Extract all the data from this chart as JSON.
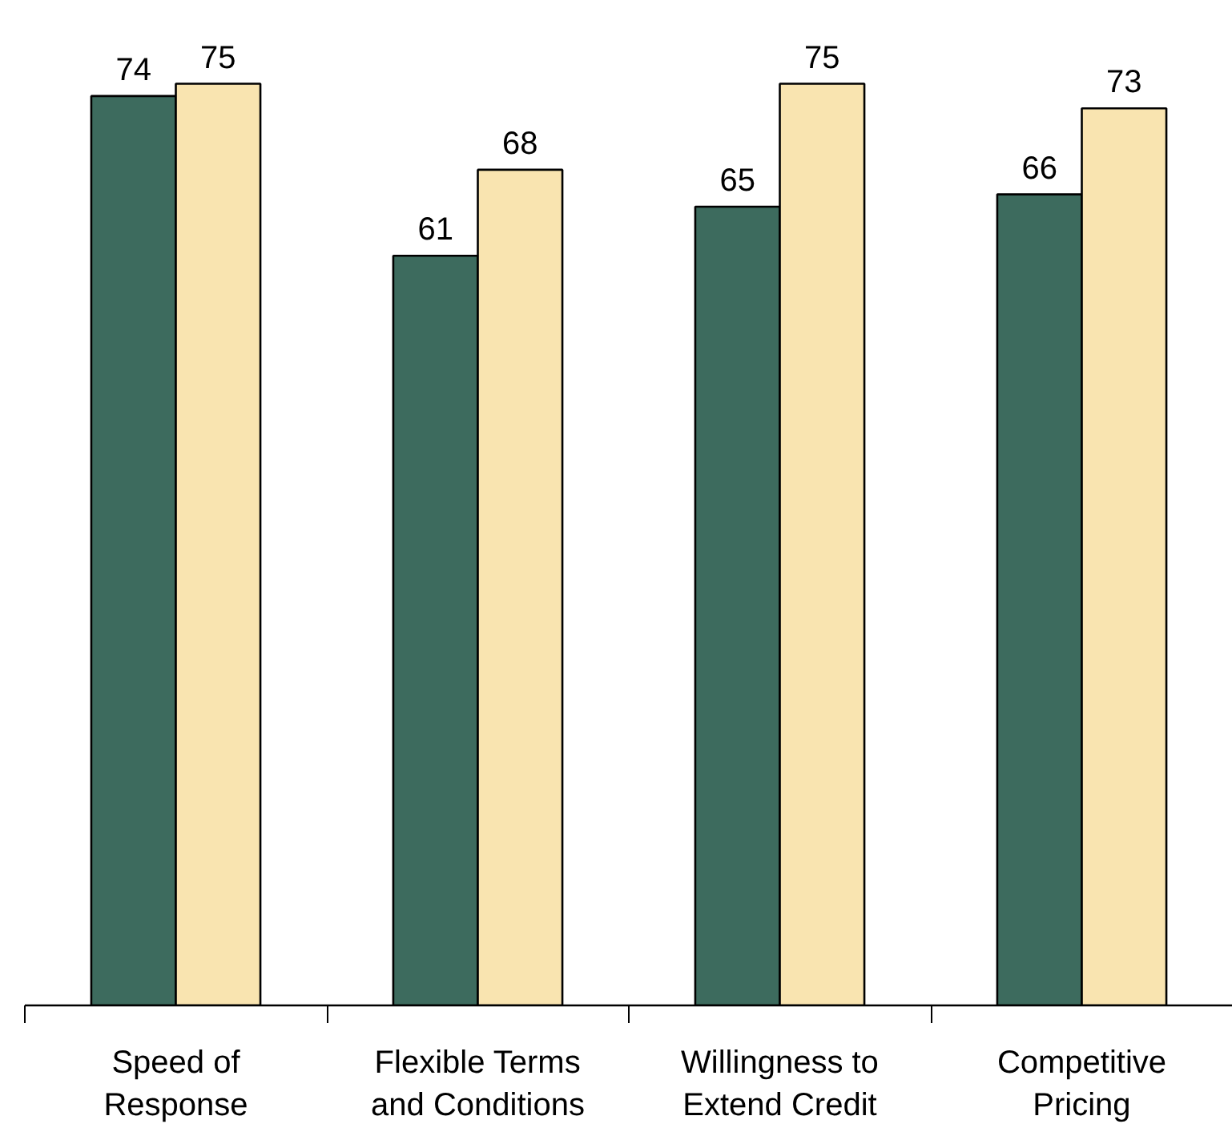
{
  "chart_data": {
    "type": "bar",
    "categories": [
      "Speed of Response",
      "Flexible Terms and Conditions",
      "Willingness to Extend Credit",
      "Competitive Pricing"
    ],
    "series": [
      {
        "color": "#3d6b5e",
        "values": [
          74,
          61,
          65,
          66
        ]
      },
      {
        "color": "#f9e4b0",
        "values": [
          75,
          68,
          75,
          73
        ]
      }
    ],
    "data_labels": true,
    "tick_labels": "x"
  }
}
